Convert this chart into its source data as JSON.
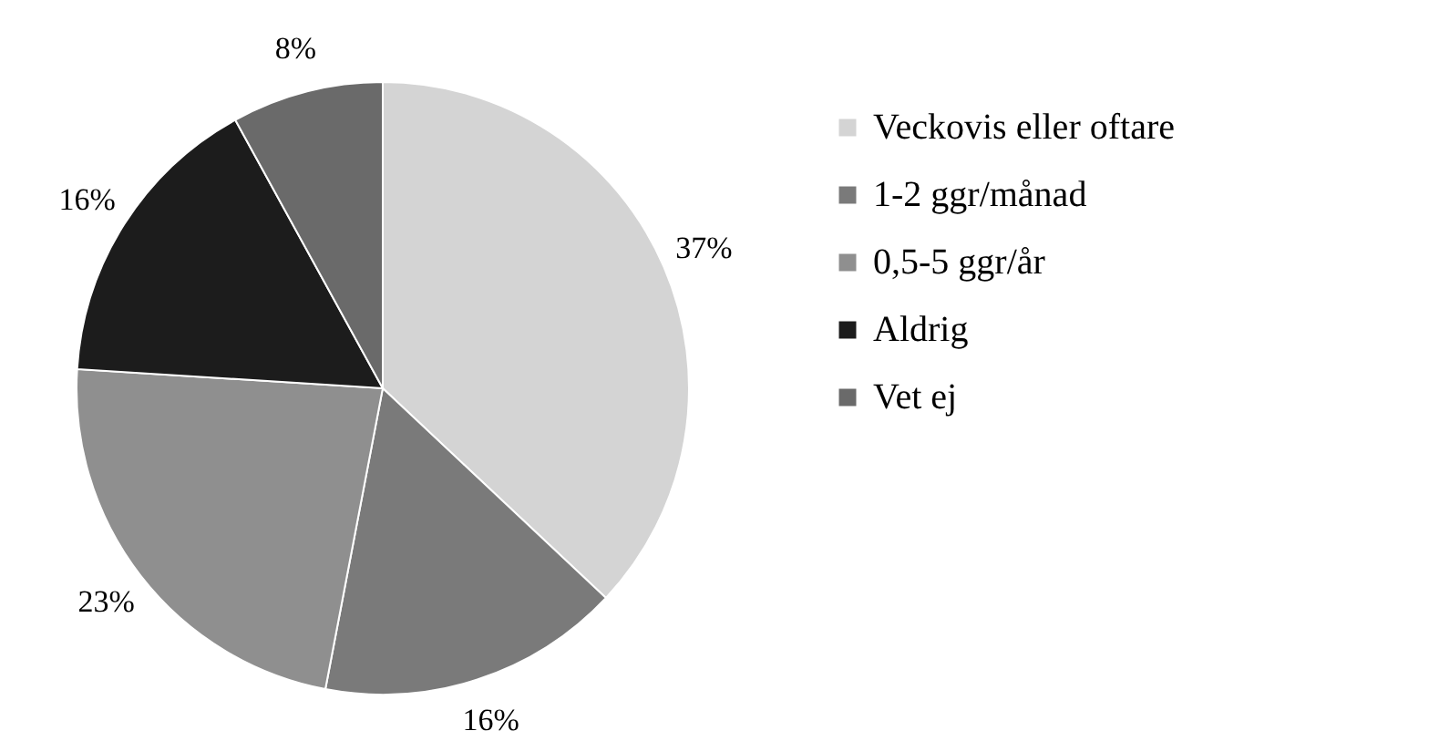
{
  "chart_data": {
    "type": "pie",
    "categories": [
      "Veckovis eller oftare",
      "1-2 ggr/månad",
      "0,5-5 ggr/år",
      "Aldrig",
      "Vet ej"
    ],
    "values": [
      37,
      16,
      23,
      16,
      8
    ],
    "value_labels": [
      "37%",
      "16%",
      "23%",
      "16%",
      "8%"
    ],
    "colors": [
      "#d4d4d4",
      "#7a7a7a",
      "#8f8f8f",
      "#1c1c1c",
      "#6a6a6a"
    ],
    "legend": "right"
  }
}
